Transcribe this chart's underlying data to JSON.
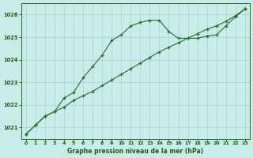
{
  "x": [
    0,
    1,
    2,
    3,
    4,
    5,
    6,
    7,
    8,
    9,
    10,
    11,
    12,
    13,
    14,
    15,
    16,
    17,
    18,
    19,
    20,
    21,
    22,
    23
  ],
  "series1": [
    1020.7,
    1021.1,
    1021.5,
    1021.7,
    1021.9,
    1022.2,
    1022.4,
    1022.6,
    1022.85,
    1023.1,
    1023.35,
    1023.6,
    1023.85,
    1024.1,
    1024.35,
    1024.55,
    1024.75,
    1024.95,
    1025.15,
    1025.35,
    1025.5,
    1025.7,
    1025.95,
    1026.25
  ],
  "series2": [
    1020.7,
    1021.1,
    1021.5,
    1021.7,
    1022.3,
    1022.55,
    1023.2,
    1023.7,
    1024.2,
    1024.85,
    1025.1,
    1025.5,
    1025.65,
    1025.75,
    1025.75,
    1025.25,
    1024.95,
    1024.95,
    1024.95,
    1025.05,
    1025.1,
    1025.5,
    1025.9,
    1026.25
  ],
  "line_color": "#2d6a2d",
  "bg_color": "#c8ece8",
  "grid_color": "#a8d5d0",
  "text_color": "#1a5c1a",
  "xlabel": "Graphe pression niveau de la mer (hPa)",
  "ylim": [
    1020.5,
    1026.5
  ],
  "xlim": [
    -0.5,
    23.5
  ],
  "yticks": [
    1021,
    1022,
    1023,
    1024,
    1025,
    1026
  ],
  "xticks": [
    0,
    1,
    2,
    3,
    4,
    5,
    6,
    7,
    8,
    9,
    10,
    11,
    12,
    13,
    14,
    15,
    16,
    17,
    18,
    19,
    20,
    21,
    22,
    23
  ]
}
